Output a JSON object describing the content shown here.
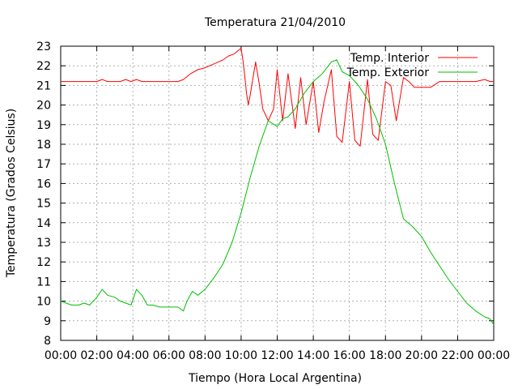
{
  "chart_data": {
    "type": "line",
    "title": "Temperatura 21/04/2010",
    "xlabel": "Tiempo (Hora Local Argentina)",
    "ylabel": "Temperatura (Grados Celsius)",
    "xlim": [
      0,
      24
    ],
    "ylim": [
      8,
      23
    ],
    "x_ticks": [
      "00:00",
      "02:00",
      "04:00",
      "06:00",
      "08:00",
      "10:00",
      "12:00",
      "14:00",
      "16:00",
      "18:00",
      "20:00",
      "22:00",
      "00:00"
    ],
    "y_ticks": [
      8,
      9,
      10,
      11,
      12,
      13,
      14,
      15,
      16,
      17,
      18,
      19,
      20,
      21,
      22,
      23
    ],
    "grid": true,
    "legend_position": "top-right",
    "colors": {
      "interior": "#ff0000",
      "exterior": "#00c000",
      "grid": "#b0b0b0",
      "frame": "#000000"
    },
    "series": [
      {
        "name": "Temp. Interior",
        "color": "#ff0000",
        "x": [
          0,
          0.3,
          0.6,
          1,
          1.5,
          2,
          2.3,
          2.6,
          3,
          3.3,
          3.6,
          3.9,
          4.2,
          4.5,
          5,
          5.5,
          6,
          6.5,
          6.8,
          7.2,
          7.6,
          8,
          8.5,
          9,
          9.3,
          9.6,
          10,
          10.1,
          10.2,
          10.3,
          10.4,
          10.5,
          10.8,
          11,
          11.2,
          11.5,
          11.8,
          12,
          12.3,
          12.6,
          13,
          13.3,
          13.6,
          14,
          14.3,
          14.6,
          15,
          15.3,
          15.6,
          16,
          16.3,
          16.6,
          17,
          17.3,
          17.6,
          18,
          18.3,
          18.6,
          19,
          19.3,
          19.6,
          20,
          20.5,
          21,
          21.5,
          22,
          22.5,
          23,
          23.5,
          23.8,
          24
        ],
        "y": [
          21.2,
          21.2,
          21.2,
          21.2,
          21.2,
          21.2,
          21.3,
          21.2,
          21.2,
          21.2,
          21.3,
          21.2,
          21.3,
          21.2,
          21.2,
          21.2,
          21.2,
          21.2,
          21.3,
          21.6,
          21.8,
          21.9,
          22.1,
          22.3,
          22.5,
          22.6,
          22.9,
          22.3,
          21.5,
          20.6,
          20.0,
          20.5,
          22.2,
          21.1,
          19.8,
          19.2,
          19.8,
          21.8,
          19.2,
          21.6,
          18.8,
          21.4,
          19.0,
          21.2,
          18.6,
          20.2,
          21.8,
          18.4,
          18.1,
          21.2,
          18.2,
          17.9,
          21.3,
          18.5,
          18.2,
          21.2,
          21.0,
          19.2,
          21.4,
          21.2,
          20.9,
          20.9,
          20.9,
          21.2,
          21.2,
          21.2,
          21.2,
          21.2,
          21.3,
          21.2,
          21.2
        ]
      },
      {
        "name": "Temp. Exterior",
        "color": "#00c000",
        "x": [
          0,
          0.3,
          0.6,
          1,
          1.3,
          1.6,
          2,
          2.3,
          2.6,
          3,
          3.3,
          3.6,
          3.9,
          4.2,
          4.5,
          4.8,
          5.1,
          5.5,
          6,
          6.5,
          6.8,
          7,
          7.3,
          7.6,
          8,
          8.5,
          9,
          9.5,
          10,
          10.5,
          11,
          11.5,
          12,
          12.3,
          12.6,
          13,
          13.5,
          14,
          14.5,
          15,
          15.3,
          15.6,
          16,
          16.5,
          17,
          17.5,
          18,
          18.5,
          19,
          19.5,
          20,
          20.5,
          21,
          21.5,
          22,
          22.5,
          23,
          23.5,
          23.8,
          24
        ],
        "y": [
          10.0,
          9.9,
          9.8,
          9.8,
          9.9,
          9.8,
          10.2,
          10.6,
          10.3,
          10.2,
          10.0,
          9.9,
          9.8,
          10.6,
          10.3,
          9.8,
          9.8,
          9.7,
          9.7,
          9.7,
          9.5,
          10.0,
          10.5,
          10.3,
          10.6,
          11.2,
          11.9,
          13.0,
          14.5,
          16.3,
          17.9,
          19.2,
          18.9,
          19.3,
          19.4,
          19.8,
          20.6,
          21.2,
          21.6,
          22.2,
          22.3,
          21.7,
          21.5,
          21.0,
          20.3,
          19.3,
          18.0,
          16.0,
          14.2,
          13.8,
          13.3,
          12.5,
          11.8,
          11.1,
          10.5,
          9.9,
          9.5,
          9.2,
          9.1,
          8.8
        ]
      }
    ]
  }
}
